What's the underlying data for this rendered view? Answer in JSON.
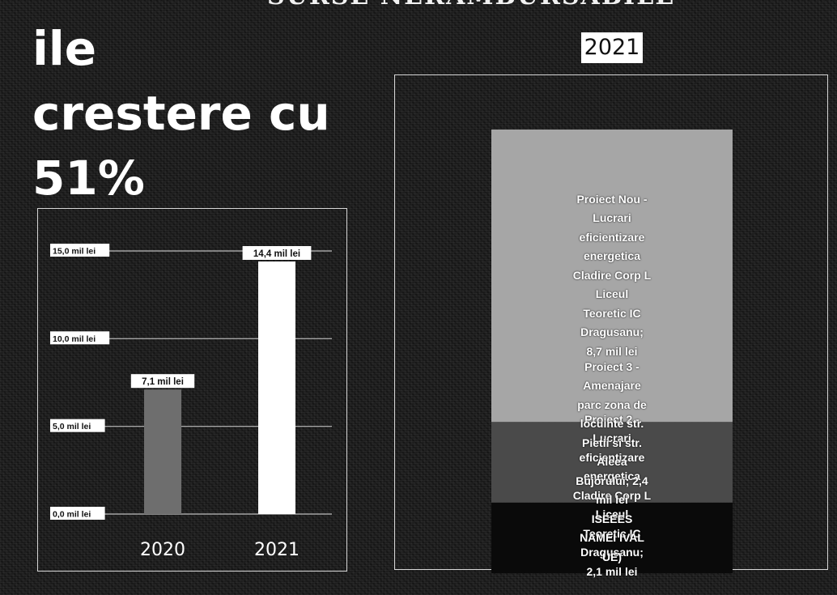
{
  "header": {
    "top_cut_text": "SURSE NERAMBURSABILE",
    "headline_lines": [
      "ile",
      "crestere cu",
      "51%"
    ]
  },
  "chart_data": [
    {
      "type": "bar",
      "categories": [
        "2020",
        "2021"
      ],
      "values": [
        7.1,
        14.4
      ],
      "value_labels": [
        "7,1 mil lei",
        "14,4 mil lei"
      ],
      "ylim": [
        0,
        15
      ],
      "yticks": [
        0,
        5,
        10,
        15
      ],
      "ytick_labels": [
        "0,0 mil lei",
        "5,0 mil lei",
        "10,0 mil lei",
        "15,0 mil lei"
      ],
      "grid": true,
      "colors": [
        "#6e6e6e",
        "#ffffff"
      ]
    },
    {
      "type": "bar",
      "stacked": true,
      "title": "2021",
      "series": [
        {
          "label": "Proiect 2 - Lucrari eficientizare energetica Cladire Corp L Liceul Teoretic IC Dragusanu; 2,1 mil lei",
          "value": 2.1,
          "color": "#0a0a0a"
        },
        {
          "label": "Proiect 3 - Amenajare parc zona de locuinte str. Pietii si str. Aleea Bujorului; 2,4 mil lei (SEE/EES NAMEI IVAL UE)",
          "value": 2.4,
          "color": "#4a4a4a"
        },
        {
          "label": "Proiect Nou - Lucrari eficientizare energetica Cladire Corp L Liceul Teoretic IC Dragusanu; 8,7 mil lei",
          "value": 8.7,
          "color": "#a6a6a6"
        }
      ],
      "segment_lines": [
        [
          "Proiect 2 -",
          "Lucrari",
          "eficientizare",
          "energetica",
          "Cladire Corp L",
          "Liceul",
          "Teoretic IC",
          "Dragusanu;",
          "2,1 mil lei"
        ],
        [
          "Proiect 3 -",
          "Amenajare",
          "parc zona de",
          "locuinte str.",
          "Pietii si str.",
          "Aleea",
          "Bujorului; 2,4",
          "mil lei",
          "ISEEES",
          "NAMEI IVAL",
          "UE)"
        ],
        [
          "Proiect Nou -",
          "Lucrari",
          "eficientizare",
          "energetica",
          "Cladire Corp L",
          "Liceul",
          "Teoretic IC",
          "Dragusanu;",
          "8,7 mil lei"
        ]
      ]
    }
  ]
}
